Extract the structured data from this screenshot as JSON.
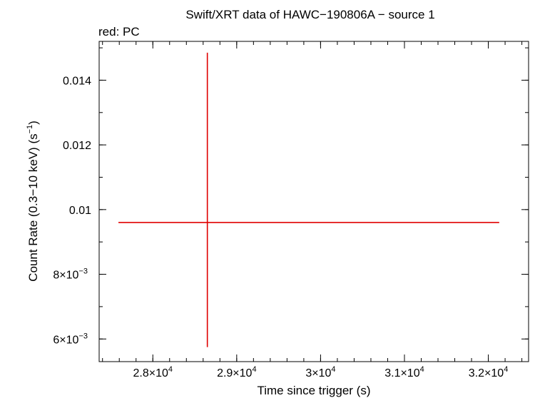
{
  "chart_data": {
    "type": "scatter",
    "title": "Swift/XRT data of HAWC−190806A − source 1",
    "subtitle": "red: PC",
    "xlabel": "Time since trigger (s)",
    "ylabel_main": "Count Rate (0.3−10 keV) (s",
    "ylabel_sup": "−1",
    "ylabel_close": ")",
    "xlim": [
      27360,
      32480
    ],
    "ylim": [
      0.0053,
      0.0152
    ],
    "x_ticks": [
      {
        "value": 28000,
        "mant": "2.8×10",
        "exp": "4"
      },
      {
        "value": 29000,
        "mant": "2.9×10",
        "exp": "4"
      },
      {
        "value": 30000,
        "mant": "3×10",
        "exp": "4"
      },
      {
        "value": 31000,
        "mant": "3.1×10",
        "exp": "4"
      },
      {
        "value": 32000,
        "mant": "3.2×10",
        "exp": "4"
      }
    ],
    "y_ticks": [
      {
        "value": 0.006,
        "mant": "6×10",
        "exp": "−3"
      },
      {
        "value": 0.008,
        "mant": "8×10",
        "exp": "−3"
      },
      {
        "value": 0.01,
        "mant": "0.01",
        "exp": ""
      },
      {
        "value": 0.012,
        "mant": "0.012",
        "exp": ""
      },
      {
        "value": 0.014,
        "mant": "0.014",
        "exp": ""
      }
    ],
    "x_minor_step": 200,
    "y_minor_step": 0.001,
    "series": [
      {
        "color": "#e00000",
        "points": [
          {
            "x": 28650,
            "y": 0.0096,
            "xlow": 27590,
            "xhigh": 32130,
            "ylow": 0.00575,
            "yhigh": 0.01485
          }
        ]
      }
    ]
  }
}
